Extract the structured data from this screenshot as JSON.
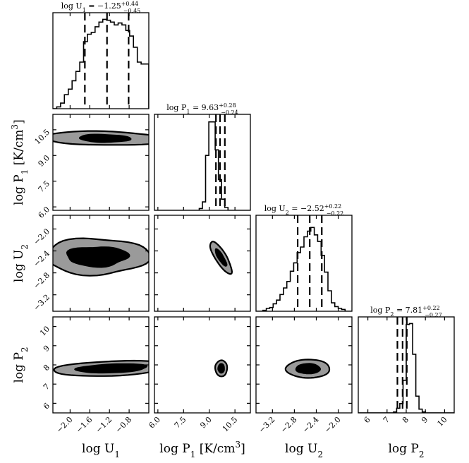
{
  "chart_data": {
    "type": "corner",
    "parameters": [
      {
        "key": "logU1",
        "label": "log U",
        "sub": "1",
        "label_suffix": "",
        "title": "log U",
        "title_sub": "1",
        "title_value": " = −1.25",
        "title_plus": "+0.44",
        "title_minus": "−0.45",
        "median": -1.25,
        "quantile_16": -1.7,
        "quantile_84": -0.81,
        "range": [
          -2.35,
          -0.4
        ],
        "ticks": [
          -2.0,
          -1.6,
          -1.2,
          -0.8
        ],
        "tick_labels": [
          "−2.0",
          "−1.6",
          "−1.2",
          "−0.8"
        ],
        "histogram": [
          0.0,
          0.02,
          0.06,
          0.15,
          0.21,
          0.3,
          0.4,
          0.5,
          0.72,
          0.8,
          0.82,
          0.88,
          0.93,
          0.96,
          0.95,
          0.93,
          0.9,
          0.92,
          0.9,
          0.84,
          0.78,
          0.66,
          0.5,
          0.48,
          0.48
        ]
      },
      {
        "key": "logP1",
        "label": "log P",
        "sub": "1",
        "label_suffix": " [K/cm",
        "label_sup": "3",
        "label_end": "]",
        "title": "log P",
        "title_sub": "1",
        "title_value": " = 9.63",
        "title_plus": "+0.28",
        "title_minus": "−0.24",
        "median": 9.63,
        "quantile_16": 9.39,
        "quantile_84": 9.91,
        "range": [
          5.8,
          11.4
        ],
        "ticks": [
          6.0,
          7.5,
          9.0,
          10.5
        ],
        "tick_labels": [
          "6.0",
          "7.5",
          "9.0",
          "10.5"
        ],
        "histogram": [
          0,
          0,
          0,
          0,
          0,
          0,
          0,
          0,
          0,
          0,
          0,
          0,
          0,
          0,
          0.02,
          0.09,
          0.59,
          0.95,
          0.95,
          0.65,
          0.33,
          0.12,
          0.03,
          0,
          0,
          0,
          0,
          0,
          0,
          0
        ]
      },
      {
        "key": "logU2",
        "label": "log U",
        "sub": "2",
        "label_suffix": "",
        "title": "log U",
        "title_sub": "2",
        "title_value": " = −2.52",
        "title_plus": "+0.22",
        "title_minus": "−0.22",
        "median": -2.52,
        "quantile_16": -2.74,
        "quantile_84": -2.3,
        "range": [
          -3.5,
          -1.75
        ],
        "ticks": [
          -3.2,
          -2.8,
          -2.4,
          -2.0
        ],
        "tick_labels": [
          "−3.2",
          "−2.8",
          "−2.4",
          "−2.0"
        ],
        "histogram": [
          0,
          0,
          0.01,
          0.03,
          0.04,
          0.08,
          0.12,
          0.18,
          0.25,
          0.32,
          0.43,
          0.52,
          0.63,
          0.69,
          0.8,
          0.86,
          0.9,
          0.82,
          0.75,
          0.6,
          0.42,
          0.22,
          0.09,
          0.05,
          0.03,
          0.02,
          0,
          0
        ]
      },
      {
        "key": "logP2",
        "label": "log P",
        "sub": "2",
        "label_suffix": "",
        "title": "log P",
        "title_sub": "2",
        "title_value": " = 7.81",
        "title_plus": "+0.22",
        "title_minus": "−0.27",
        "median": 7.81,
        "quantile_16": 7.54,
        "quantile_84": 8.03,
        "range": [
          5.5,
          10.5
        ],
        "ticks": [
          6,
          7,
          8,
          9,
          10
        ],
        "tick_labels": [
          "6",
          "7",
          "8",
          "9",
          "10"
        ],
        "histogram": [
          0,
          0,
          0,
          0,
          0,
          0,
          0,
          0,
          0,
          0,
          0,
          0.01,
          0.05,
          0.1,
          0.35,
          0.95,
          0.96,
          0.63,
          0.18,
          0.04,
          0.01,
          0,
          0,
          0,
          0,
          0,
          0,
          0,
          0,
          0
        ]
      }
    ],
    "contour_colors": {
      "outer_fill": "#9a9a9a",
      "inner_fill": "#000000",
      "line": "#000000"
    }
  }
}
